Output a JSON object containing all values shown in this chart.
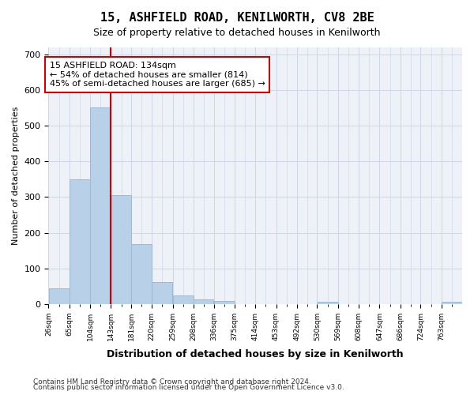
{
  "title1": "15, ASHFIELD ROAD, KENILWORTH, CV8 2BE",
  "title2": "Size of property relative to detached houses in Kenilworth",
  "xlabel": "Distribution of detached houses by size in Kenilworth",
  "ylabel": "Number of detached properties",
  "bar_color": "#b8d0e8",
  "bar_edgecolor": "#a0b8d0",
  "grid_color": "#d0d8e8",
  "bg_color": "#eef2f8",
  "vline_color": "#cc0000",
  "vline_x": 134,
  "annotation_text": "15 ASHFIELD ROAD: 134sqm\n← 54% of detached houses are smaller (814)\n45% of semi-detached houses are larger (685) →",
  "annotation_box_color": "#ffffff",
  "annotation_border_color": "#cc0000",
  "bins": [
    26,
    65,
    104,
    143,
    181,
    220,
    259,
    298,
    336,
    375,
    414,
    453,
    492,
    530,
    569,
    608,
    647,
    686,
    724,
    763,
    802
  ],
  "bar_heights": [
    43,
    350,
    552,
    305,
    168,
    62,
    24,
    12,
    8,
    0,
    0,
    0,
    0,
    7,
    0,
    0,
    0,
    0,
    0,
    7
  ],
  "ylim": [
    0,
    720
  ],
  "yticks": [
    0,
    100,
    200,
    300,
    400,
    500,
    600,
    700
  ],
  "footer1": "Contains HM Land Registry data © Crown copyright and database right 2024.",
  "footer2": "Contains public sector information licensed under the Open Government Licence v3.0."
}
